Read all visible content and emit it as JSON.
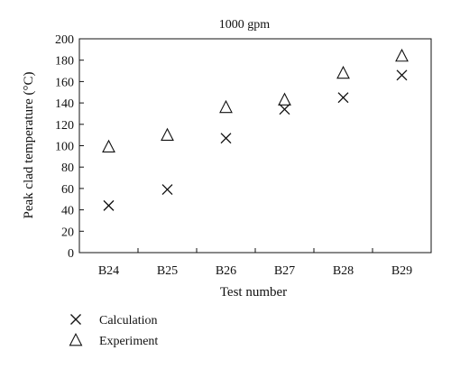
{
  "chart_data": {
    "type": "scatter",
    "title": "1000 gpm",
    "xlabel": "Test number",
    "ylabel": "Peak clad temperature (°C)",
    "categories": [
      "B24",
      "B25",
      "B26",
      "B27",
      "B28",
      "B29"
    ],
    "ylim": [
      0,
      200
    ],
    "yticks": [
      0,
      20,
      40,
      60,
      80,
      100,
      120,
      140,
      160,
      180,
      200
    ],
    "grid": false,
    "legend_position": "bottom-left",
    "series": [
      {
        "name": "Calculation",
        "marker": "cross",
        "values": [
          44,
          59,
          107,
          134,
          145,
          166
        ]
      },
      {
        "name": "Experiment",
        "marker": "triangle",
        "values": [
          99,
          110,
          136,
          143,
          168,
          184
        ]
      }
    ],
    "colors": {
      "axis": "#111111",
      "marker": "#111111",
      "background": "#ffffff"
    }
  }
}
